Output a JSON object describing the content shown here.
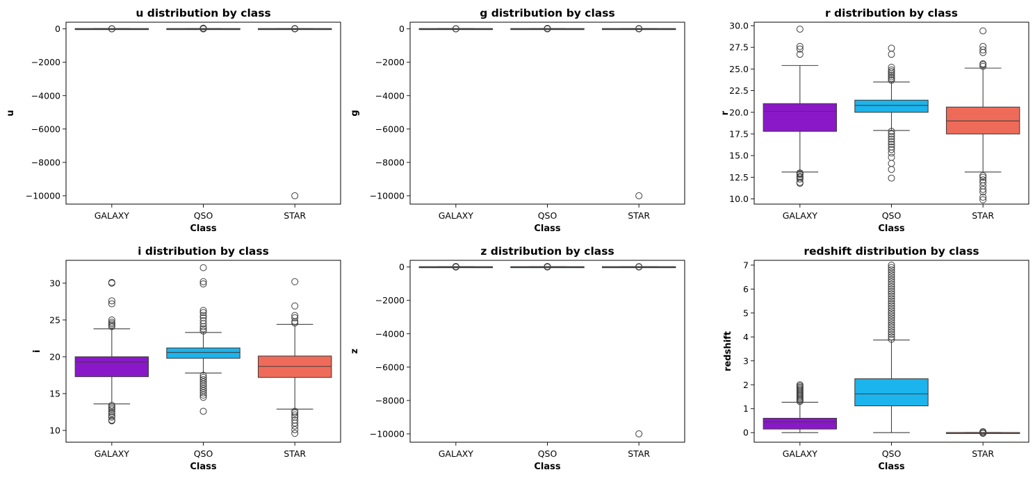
{
  "chart_data": [
    {
      "type": "box",
      "title": "u distribution by class",
      "xlabel": "Class",
      "ylabel": "u",
      "categories": [
        "GALAXY",
        "QSO",
        "STAR"
      ],
      "ylim": [
        -10500,
        400
      ],
      "yticks": [
        0,
        -2000,
        -4000,
        -6000,
        -8000,
        -10000
      ],
      "ytick_labels": [
        "0",
        "−2000",
        "−4000",
        "−6000",
        "−8000",
        "−10000"
      ],
      "boxes": [
        {
          "category": "GALAXY",
          "q1": 0,
          "median": 0,
          "q3": 20,
          "whislo": -10,
          "whishi": 25,
          "fliers": [
            0,
            5,
            10
          ]
        },
        {
          "category": "QSO",
          "q1": 0,
          "median": 0,
          "q3": 20,
          "whislo": -10,
          "whishi": 25,
          "fliers": [
            0,
            10,
            20,
            30,
            40
          ]
        },
        {
          "category": "STAR",
          "q1": 0,
          "median": 0,
          "q3": 20,
          "whislo": -10,
          "whishi": 25,
          "fliers": [
            0,
            10,
            20,
            -9999
          ]
        }
      ]
    },
    {
      "type": "box",
      "title": "g distribution by class",
      "xlabel": "Class",
      "ylabel": "g",
      "categories": [
        "GALAXY",
        "QSO",
        "STAR"
      ],
      "ylim": [
        -10500,
        400
      ],
      "yticks": [
        0,
        -2000,
        -4000,
        -6000,
        -8000,
        -10000
      ],
      "ytick_labels": [
        "0",
        "−2000",
        "−4000",
        "−6000",
        "−8000",
        "−10000"
      ],
      "boxes": [
        {
          "category": "GALAXY",
          "q1": 0,
          "median": 0,
          "q3": 20,
          "whislo": -10,
          "whishi": 25,
          "fliers": [
            0,
            5,
            10
          ]
        },
        {
          "category": "QSO",
          "q1": 0,
          "median": 0,
          "q3": 20,
          "whislo": -10,
          "whishi": 25,
          "fliers": [
            0,
            10,
            20,
            30
          ]
        },
        {
          "category": "STAR",
          "q1": 0,
          "median": 0,
          "q3": 20,
          "whislo": -10,
          "whishi": 25,
          "fliers": [
            0,
            10,
            20,
            -9999
          ]
        }
      ]
    },
    {
      "type": "box",
      "title": "r distribution by class",
      "xlabel": "Class",
      "ylabel": "r",
      "categories": [
        "GALAXY",
        "QSO",
        "STAR"
      ],
      "ylim": [
        9.4,
        30.4
      ],
      "yticks": [
        10.0,
        12.5,
        15.0,
        17.5,
        20.0,
        22.5,
        25.0,
        27.5,
        30.0
      ],
      "ytick_labels": [
        "10.0",
        "12.5",
        "15.0",
        "17.5",
        "20.0",
        "22.5",
        "25.0",
        "27.5",
        "30.0"
      ],
      "boxes": [
        {
          "category": "GALAXY",
          "q1": 17.8,
          "median": 20.1,
          "q3": 21.0,
          "whislo": 13.1,
          "whishi": 25.4,
          "fliers": [
            11.8,
            11.9,
            12.3,
            12.5,
            12.6,
            12.8,
            12.9,
            13.0,
            26.7,
            27.3,
            27.6,
            29.6
          ]
        },
        {
          "category": "QSO",
          "q1": 20.0,
          "median": 20.8,
          "q3": 21.4,
          "whislo": 17.9,
          "whishi": 23.5,
          "fliers": [
            12.4,
            13.4,
            14.1,
            14.8,
            15.3,
            15.7,
            16.0,
            16.3,
            16.6,
            16.9,
            17.2,
            17.5,
            17.8,
            23.7,
            23.9,
            24.1,
            24.3,
            24.5,
            24.7,
            24.9,
            25.2,
            26.7,
            27.4
          ]
        },
        {
          "category": "STAR",
          "q1": 17.5,
          "median": 19.0,
          "q3": 20.6,
          "whislo": 13.1,
          "whishi": 25.1,
          "fliers": [
            9.9,
            10.2,
            10.8,
            11.1,
            11.5,
            11.9,
            12.2,
            12.5,
            12.7,
            25.3,
            25.5,
            25.6,
            26.9,
            27.2,
            27.6,
            29.4
          ]
        }
      ]
    },
    {
      "type": "box",
      "title": "i distribution by class",
      "xlabel": "Class",
      "ylabel": "i",
      "categories": [
        "GALAXY",
        "QSO",
        "STAR"
      ],
      "ylim": [
        8.4,
        33.1
      ],
      "yticks": [
        10,
        15,
        20,
        25,
        30
      ],
      "ytick_labels": [
        "10",
        "15",
        "20",
        "25",
        "30"
      ],
      "boxes": [
        {
          "category": "GALAXY",
          "q1": 17.3,
          "median": 19.3,
          "q3": 20.0,
          "whislo": 13.6,
          "whishi": 23.8,
          "fliers": [
            11.3,
            11.4,
            11.8,
            12.0,
            12.3,
            12.5,
            12.8,
            13.0,
            13.2,
            13.4,
            24.1,
            24.3,
            24.5,
            24.7,
            25.0,
            27.2,
            27.6,
            30.0,
            30.1
          ]
        },
        {
          "category": "QSO",
          "q1": 19.8,
          "median": 20.6,
          "q3": 21.2,
          "whislo": 17.8,
          "whishi": 23.3,
          "fliers": [
            12.6,
            14.5,
            14.8,
            15.1,
            15.4,
            15.7,
            16.0,
            16.3,
            16.6,
            16.9,
            17.2,
            17.5,
            23.5,
            23.8,
            24.1,
            24.5,
            24.9,
            25.3,
            25.6,
            26.0,
            26.3,
            29.9,
            30.2,
            32.1
          ]
        },
        {
          "category": "STAR",
          "q1": 17.2,
          "median": 18.7,
          "q3": 20.1,
          "whislo": 12.9,
          "whishi": 24.4,
          "fliers": [
            9.6,
            10.1,
            10.6,
            11.0,
            11.4,
            11.8,
            12.1,
            12.4,
            12.6,
            24.6,
            24.8,
            25.3,
            25.6,
            26.9,
            30.2
          ]
        }
      ]
    },
    {
      "type": "box",
      "title": "z distribution by class",
      "xlabel": "Class",
      "ylabel": "z",
      "categories": [
        "GALAXY",
        "QSO",
        "STAR"
      ],
      "ylim": [
        -10500,
        400
      ],
      "yticks": [
        0,
        -2000,
        -4000,
        -6000,
        -8000,
        -10000
      ],
      "ytick_labels": [
        "0",
        "−2000",
        "−4000",
        "−6000",
        "−8000",
        "−10000"
      ],
      "boxes": [
        {
          "category": "GALAXY",
          "q1": 0,
          "median": 0,
          "q3": 20,
          "whislo": -10,
          "whishi": 25,
          "fliers": [
            0,
            5,
            10,
            30
          ]
        },
        {
          "category": "QSO",
          "q1": 0,
          "median": 0,
          "q3": 20,
          "whislo": -10,
          "whishi": 25,
          "fliers": [
            0,
            10,
            20,
            30
          ]
        },
        {
          "category": "STAR",
          "q1": 0,
          "median": 0,
          "q3": 20,
          "whislo": -10,
          "whishi": 25,
          "fliers": [
            0,
            10,
            20,
            -9999
          ]
        }
      ]
    },
    {
      "type": "box",
      "title": "redshift distribution by class",
      "xlabel": "Class",
      "ylabel": "redshift",
      "categories": [
        "GALAXY",
        "QSO",
        "STAR"
      ],
      "ylim": [
        -0.4,
        7.2
      ],
      "yticks": [
        0,
        1,
        2,
        3,
        4,
        5,
        6,
        7
      ],
      "ytick_labels": [
        "0",
        "1",
        "2",
        "3",
        "4",
        "5",
        "6",
        "7"
      ],
      "boxes": [
        {
          "category": "GALAXY",
          "q1": 0.15,
          "median": 0.45,
          "q3": 0.6,
          "whislo": 0.0,
          "whishi": 1.27,
          "fliers": [
            1.3,
            1.35,
            1.4,
            1.45,
            1.5,
            1.55,
            1.6,
            1.65,
            1.7,
            1.75,
            1.8,
            1.85,
            1.9,
            1.95,
            2.0
          ]
        },
        {
          "category": "QSO",
          "q1": 1.12,
          "median": 1.62,
          "q3": 2.25,
          "whislo": 0.0,
          "whishi": 3.87,
          "fliers": [
            3.9,
            4.0,
            4.1,
            4.2,
            4.3,
            4.4,
            4.5,
            4.6,
            4.7,
            4.8,
            4.9,
            5.0,
            5.1,
            5.2,
            5.3,
            5.4,
            5.5,
            5.6,
            5.7,
            5.8,
            5.9,
            6.0,
            6.1,
            6.2,
            6.3,
            6.4,
            6.5,
            6.6,
            6.7,
            6.8,
            6.9,
            7.0
          ]
        },
        {
          "category": "STAR",
          "q1": -0.005,
          "median": 0.0,
          "q3": 0.005,
          "whislo": -0.01,
          "whishi": 0.01,
          "fliers": [
            -0.03,
            -0.02,
            0.02,
            0.03,
            0.04
          ]
        }
      ]
    }
  ],
  "palette": {
    "GALAXY": "#8a18c8",
    "QSO": "#1cb4ec",
    "STAR": "#ef6b59"
  }
}
